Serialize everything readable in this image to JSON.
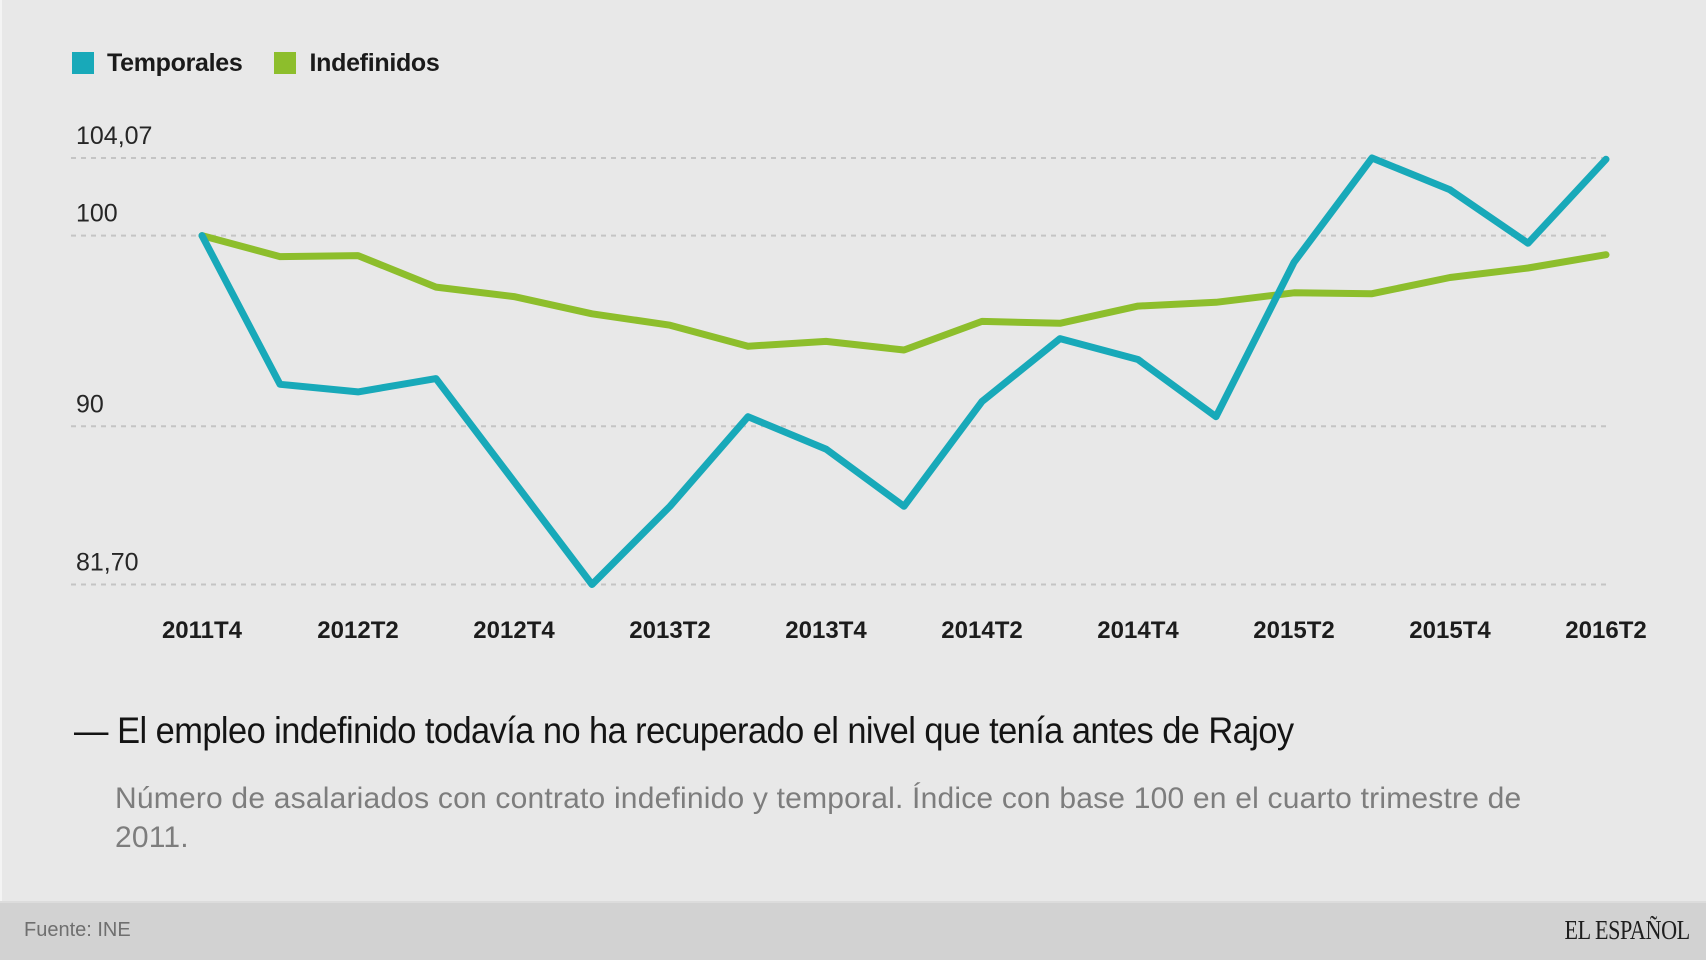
{
  "chart_data": {
    "type": "line",
    "title": "El empleo indefinido todavía no ha recuperado el nivel que tenía antes de Rajoy",
    "subtitle": "Número de asalariados con contrato indefinido y temporal. Índice con base 100 en el cuarto trimestre de 2011.",
    "xlabel": "",
    "ylabel": "",
    "x": [
      "2011T4",
      "2012T1",
      "2012T2",
      "2012T3",
      "2012T4",
      "2013T1",
      "2013T2",
      "2013T3",
      "2013T4",
      "2014T1",
      "2014T2",
      "2014T3",
      "2014T4",
      "2015T1",
      "2015T2",
      "2015T3",
      "2015T4",
      "2016T1",
      "2016T2"
    ],
    "x_tick_labels": [
      "2011T4",
      "2012T2",
      "2012T4",
      "2013T2",
      "2013T4",
      "2014T2",
      "2014T4",
      "2015T2",
      "2015T4",
      "2016T2"
    ],
    "y_ticks": [
      {
        "value": 104.07,
        "label": "104,07"
      },
      {
        "value": 100,
        "label": "100"
      },
      {
        "value": 90,
        "label": "90"
      },
      {
        "value": 81.7,
        "label": "81,70"
      }
    ],
    "ylim": [
      81.7,
      104.07
    ],
    "grid": true,
    "legend_position": "top-left",
    "series": [
      {
        "name": "Temporales",
        "color": "#18a9b9",
        "values": [
          100,
          92.2,
          91.8,
          92.5,
          87.1,
          81.7,
          85.8,
          90.5,
          88.8,
          85.8,
          91.3,
          94.6,
          93.5,
          90.5,
          98.6,
          104.07,
          102.4,
          99.6,
          104.0
        ]
      },
      {
        "name": "Indefinidos",
        "color": "#8dbe2c",
        "values": [
          100,
          98.9,
          98.95,
          97.3,
          96.8,
          95.9,
          95.3,
          94.2,
          94.45,
          94.0,
          95.5,
          95.4,
          96.3,
          96.5,
          97.0,
          96.95,
          97.8,
          98.3,
          99.0
        ]
      }
    ]
  },
  "header": {
    "title_dash": "—",
    "title": "El empleo indefinido todavía no ha recuperado el nivel que tenía antes de Rajoy",
    "subtitle": "Número de asalariados con contrato indefinido y temporal. Índice con base 100 en el cuarto trimestre de 2011."
  },
  "footer": {
    "source": "Fuente: INE",
    "brand": "EL ESPAÑOL"
  }
}
